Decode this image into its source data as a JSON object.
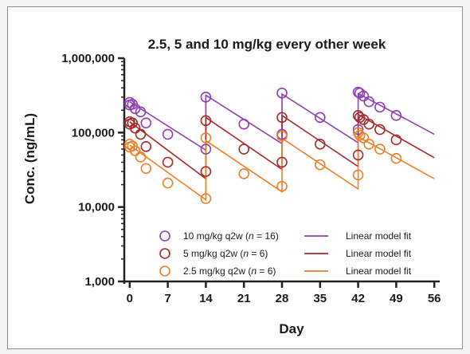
{
  "chart_data": {
    "type": "scatter",
    "title": "2.5, 5 and 10 mg/kg every other week",
    "xlabel": "Day",
    "ylabel": "Conc. (ng/mL)",
    "x_ticks": [
      0,
      7,
      14,
      21,
      28,
      35,
      42,
      49,
      56
    ],
    "y_ticks": [
      1000,
      10000,
      100000,
      1000000
    ],
    "y_tick_labels": [
      "1,000",
      "10,000",
      "100,000",
      "1,000,000"
    ],
    "xlim": [
      -1,
      57
    ],
    "ylim": [
      1000,
      1000000
    ],
    "yscale": "log",
    "grid": false,
    "legend_position": "bottom-center",
    "series": [
      {
        "name": "10 mg/kg q2w (n = 16)",
        "legend_parts": [
          "10 mg/kg q2w (",
          "n",
          " = 16)"
        ],
        "fit_name": "Linear model fit",
        "color": "#8e3fb2",
        "points": [
          [
            0,
            255000
          ],
          [
            0,
            235000
          ],
          [
            0.5,
            240000
          ],
          [
            1,
            210000
          ],
          [
            2,
            190000
          ],
          [
            3,
            135000
          ],
          [
            7,
            95000
          ],
          [
            14,
            60000
          ],
          [
            14,
            300000
          ],
          [
            21,
            130000
          ],
          [
            28,
            95000
          ],
          [
            28,
            340000
          ],
          [
            35,
            160000
          ],
          [
            42,
            110000
          ],
          [
            42,
            350000
          ],
          [
            42.3,
            340000
          ],
          [
            43,
            310000
          ],
          [
            44,
            260000
          ],
          [
            46,
            220000
          ],
          [
            49,
            170000
          ]
        ],
        "fit": [
          [
            0,
            260000
          ],
          [
            14,
            58000
          ],
          [
            14,
            318000
          ],
          [
            28,
            71000
          ],
          [
            28,
            330000
          ],
          [
            42,
            73000
          ],
          [
            42,
            335000
          ],
          [
            56,
            95000
          ]
        ]
      },
      {
        "name": "5 mg/kg q2w (n = 6)",
        "legend_parts": [
          "5 mg/kg q2w (",
          "n",
          " = 6)"
        ],
        "fit_name": "Linear model fit",
        "color": "#a52a2a",
        "points": [
          [
            0,
            140000
          ],
          [
            0,
            130000
          ],
          [
            0.5,
            135000
          ],
          [
            1,
            115000
          ],
          [
            2,
            95000
          ],
          [
            3,
            65000
          ],
          [
            7,
            40000
          ],
          [
            14,
            30000
          ],
          [
            14,
            145000
          ],
          [
            21,
            60000
          ],
          [
            28,
            40000
          ],
          [
            28,
            160000
          ],
          [
            35,
            70000
          ],
          [
            42,
            50000
          ],
          [
            42,
            170000
          ],
          [
            42.3,
            160000
          ],
          [
            43,
            150000
          ],
          [
            44,
            130000
          ],
          [
            46,
            110000
          ],
          [
            49,
            80000
          ]
        ],
        "fit": [
          [
            0,
            140000
          ],
          [
            14,
            24000
          ],
          [
            14,
            160000
          ],
          [
            28,
            32000
          ],
          [
            28,
            170000
          ],
          [
            42,
            35000
          ],
          [
            42,
            175000
          ],
          [
            56,
            46000
          ]
        ]
      },
      {
        "name": "2.5 mg/kg q2w (n = 6)",
        "legend_parts": [
          "2.5 mg/kg q2w (",
          "n",
          " = 6)"
        ],
        "fit_name": "Linear model fit",
        "color": "#f07f2a",
        "points": [
          [
            0,
            70000
          ],
          [
            0,
            64000
          ],
          [
            0.5,
            66000
          ],
          [
            1,
            57000
          ],
          [
            2,
            47000
          ],
          [
            3,
            33000
          ],
          [
            7,
            21000
          ],
          [
            14,
            13000
          ],
          [
            14,
            85000
          ],
          [
            21,
            28000
          ],
          [
            28,
            19000
          ],
          [
            28,
            90000
          ],
          [
            35,
            37000
          ],
          [
            42,
            27000
          ],
          [
            42,
            100000
          ],
          [
            42.3,
            92000
          ],
          [
            43,
            85000
          ],
          [
            44,
            70000
          ],
          [
            46,
            60000
          ],
          [
            49,
            45000
          ]
        ],
        "fit": [
          [
            0,
            68000
          ],
          [
            14,
            12500
          ],
          [
            14,
            78000
          ],
          [
            28,
            16000
          ],
          [
            28,
            84000
          ],
          [
            42,
            17500
          ],
          [
            42,
            88000
          ],
          [
            56,
            24000
          ]
        ]
      }
    ]
  }
}
